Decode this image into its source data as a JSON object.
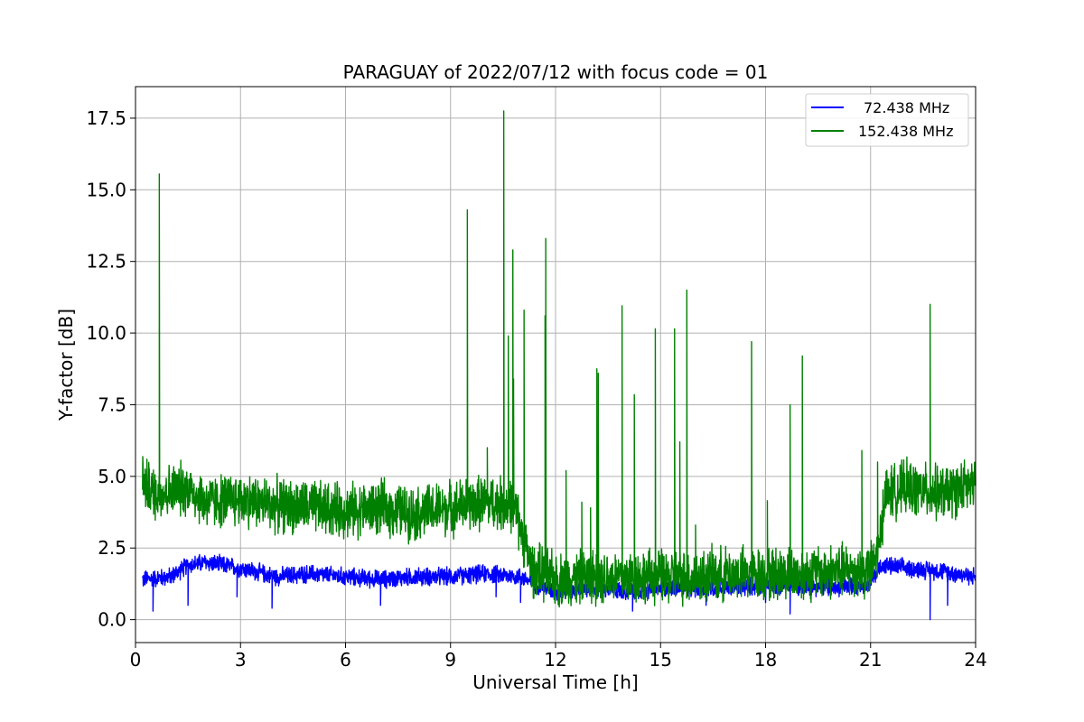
{
  "chart_data": {
    "type": "line",
    "title": "PARAGUAY of 2022/07/12 with focus code = 01",
    "xlabel": "Universal Time [h]",
    "ylabel": "Y-factor [dB]",
    "xlim": [
      0,
      24
    ],
    "ylim": [
      -0.8,
      18.6
    ],
    "xticks": [
      0,
      3,
      6,
      9,
      12,
      15,
      18,
      21,
      24
    ],
    "xtick_labels": [
      "0",
      "3",
      "6",
      "9",
      "12",
      "15",
      "18",
      "21",
      "24"
    ],
    "yticks": [
      0.0,
      2.5,
      5.0,
      7.5,
      10.0,
      12.5,
      15.0,
      17.5
    ],
    "ytick_labels": [
      "0.0",
      "2.5",
      "5.0",
      "7.5",
      "10.0",
      "12.5",
      "15.0",
      "17.5"
    ],
    "grid": true,
    "legend_position": "top-right",
    "series": [
      {
        "name": "72.438 MHz",
        "color": "#0000ff",
        "baseline": [
          [
            0.2,
            1.4
          ],
          [
            1.0,
            1.5
          ],
          [
            1.5,
            1.9
          ],
          [
            2.0,
            2.0
          ],
          [
            2.5,
            1.9
          ],
          [
            3.0,
            1.8
          ],
          [
            4.0,
            1.5
          ],
          [
            5.0,
            1.6
          ],
          [
            6.0,
            1.5
          ],
          [
            7.0,
            1.4
          ],
          [
            8.0,
            1.5
          ],
          [
            9.0,
            1.5
          ],
          [
            10.0,
            1.6
          ],
          [
            11.0,
            1.5
          ],
          [
            11.5,
            1.2
          ],
          [
            12.0,
            1.0
          ],
          [
            13.0,
            1.1
          ],
          [
            14.0,
            1.0
          ],
          [
            15.0,
            1.1
          ],
          [
            16.0,
            1.1
          ],
          [
            17.0,
            1.1
          ],
          [
            18.0,
            1.2
          ],
          [
            19.0,
            1.2
          ],
          [
            20.0,
            1.1
          ],
          [
            21.0,
            1.3
          ],
          [
            21.3,
            1.9
          ],
          [
            22.0,
            1.8
          ],
          [
            23.0,
            1.7
          ],
          [
            24.0,
            1.5
          ]
        ],
        "noise": 0.25,
        "dips": [
          [
            0.5,
            0.3
          ],
          [
            1.5,
            0.5
          ],
          [
            2.9,
            0.8
          ],
          [
            3.9,
            0.4
          ],
          [
            7.0,
            0.5
          ],
          [
            10.3,
            0.8
          ],
          [
            11.0,
            0.6
          ],
          [
            14.2,
            0.3
          ],
          [
            16.3,
            0.5
          ],
          [
            18.0,
            0.6
          ],
          [
            18.7,
            0.2
          ],
          [
            20.1,
            0.8
          ],
          [
            22.7,
            0.0
          ],
          [
            23.2,
            0.5
          ]
        ]
      },
      {
        "name": "152.438 MHz",
        "color": "#008000",
        "baseline": [
          [
            0.2,
            4.9
          ],
          [
            0.5,
            4.4
          ],
          [
            1.0,
            4.5
          ],
          [
            1.5,
            4.6
          ],
          [
            2.0,
            4.1
          ],
          [
            3.0,
            4.2
          ],
          [
            4.0,
            4.0
          ],
          [
            5.0,
            3.9
          ],
          [
            6.0,
            3.8
          ],
          [
            7.0,
            3.9
          ],
          [
            8.0,
            3.7
          ],
          [
            9.0,
            3.9
          ],
          [
            10.0,
            4.1
          ],
          [
            10.8,
            4.0
          ],
          [
            11.1,
            2.8
          ],
          [
            11.3,
            1.8
          ],
          [
            12.0,
            1.4
          ],
          [
            13.0,
            1.5
          ],
          [
            14.0,
            1.5
          ],
          [
            15.0,
            1.5
          ],
          [
            16.0,
            1.5
          ],
          [
            17.0,
            1.6
          ],
          [
            18.0,
            1.6
          ],
          [
            19.0,
            1.6
          ],
          [
            20.0,
            1.7
          ],
          [
            21.0,
            1.7
          ],
          [
            21.25,
            2.5
          ],
          [
            21.4,
            4.4
          ],
          [
            22.0,
            4.6
          ],
          [
            23.0,
            4.4
          ],
          [
            24.0,
            4.7
          ]
        ],
        "noise": 0.75,
        "spikes": [
          [
            0.68,
            15.55
          ],
          [
            9.48,
            14.3
          ],
          [
            10.05,
            6.0
          ],
          [
            10.52,
            17.75
          ],
          [
            10.65,
            9.9
          ],
          [
            10.78,
            12.9
          ],
          [
            10.8,
            8.4
          ],
          [
            11.1,
            10.8
          ],
          [
            11.72,
            13.3
          ],
          [
            11.7,
            10.6
          ],
          [
            12.3,
            5.2
          ],
          [
            12.75,
            4.1
          ],
          [
            13.0,
            3.9
          ],
          [
            13.18,
            8.75
          ],
          [
            13.22,
            8.6
          ],
          [
            13.9,
            10.95
          ],
          [
            14.25,
            7.85
          ],
          [
            14.85,
            10.15
          ],
          [
            15.4,
            10.15
          ],
          [
            15.55,
            6.2
          ],
          [
            15.75,
            11.5
          ],
          [
            16.0,
            3.3
          ],
          [
            17.6,
            9.7
          ],
          [
            18.05,
            4.15
          ],
          [
            18.7,
            7.5
          ],
          [
            19.05,
            9.2
          ],
          [
            20.75,
            5.9
          ],
          [
            21.2,
            5.5
          ],
          [
            22.7,
            11.0
          ]
        ]
      }
    ]
  }
}
